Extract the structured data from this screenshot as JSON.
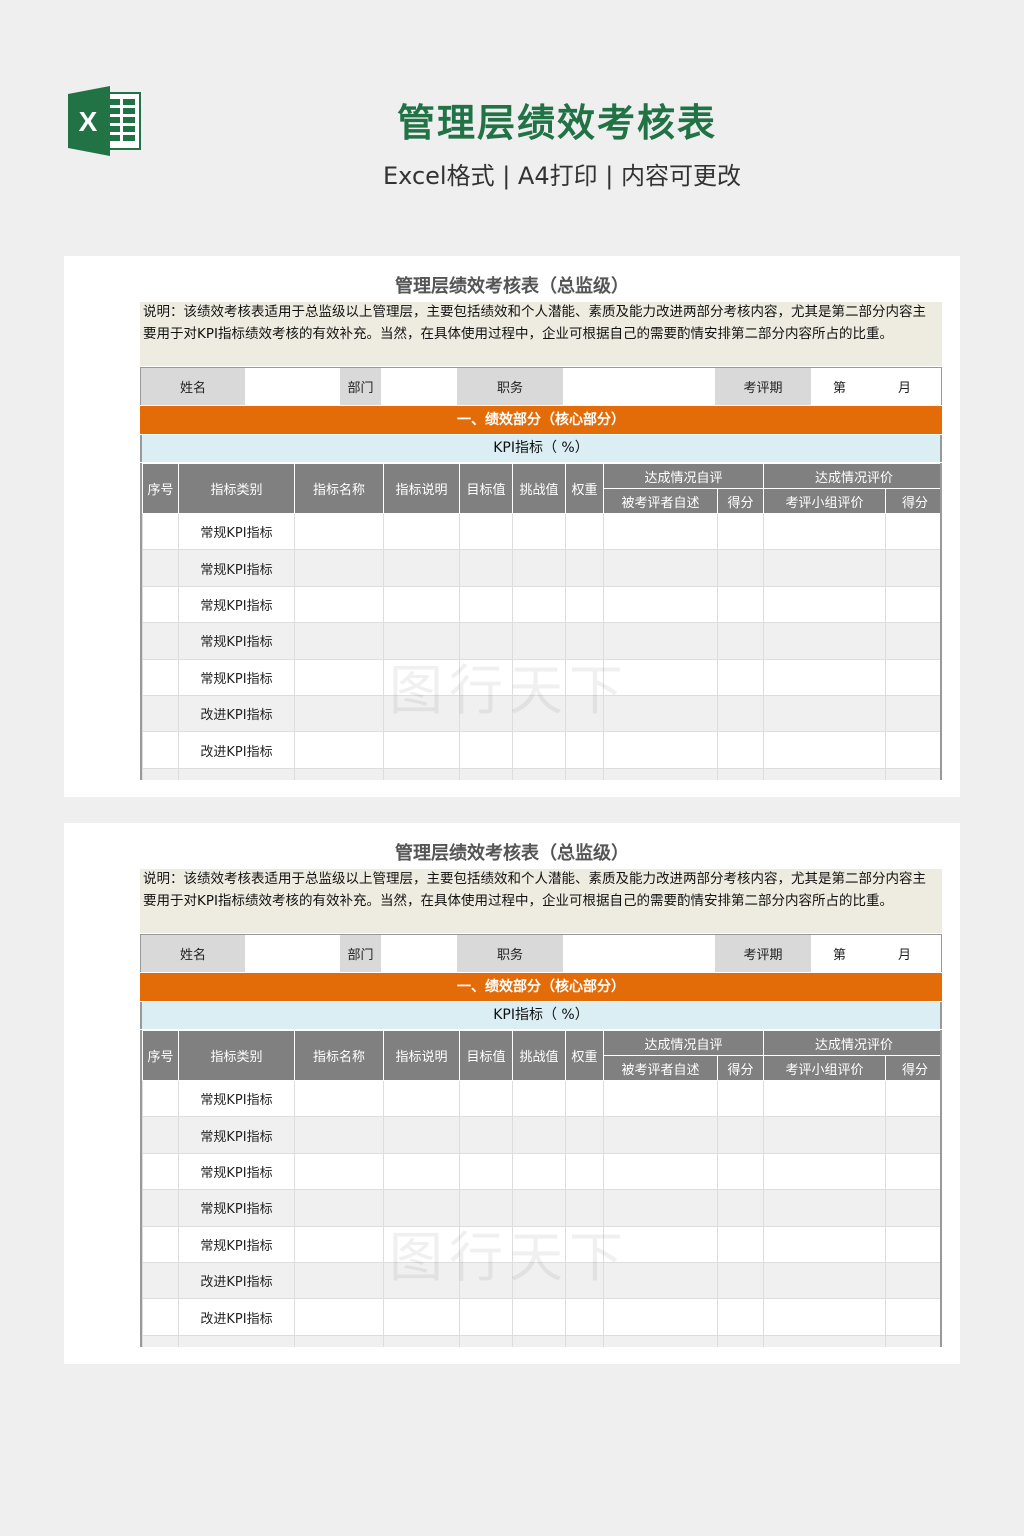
{
  "header": {
    "title": "管理层绩效考核表",
    "subtitle": "Excel格式 | A4打印 | 内容可更改",
    "logo_letter": "X"
  },
  "colors": {
    "brand_green": "#217346",
    "section_orange": "#e36c09",
    "kpi_blue": "#daeef3",
    "header_gray": "#808080",
    "desc_bg": "#eeece1"
  },
  "sheet": {
    "title": "管理层绩效考核表（总监级）",
    "description": "说明：该绩效考核表适用于总监级以上管理层，主要包括绩效和个人潜能、素质及能力改进两部分考核内容，尤其是第二部分内容主要用于对KPI指标绩效考核的有效补充。当然，在具体使用过程中，企业可根据自己的需要酌情安排第二部分内容所占的比重。",
    "info": {
      "name_label": "姓名",
      "dept_label": "部门",
      "position_label": "职务",
      "period_label": "考评期",
      "period_no": "第",
      "period_month": "月"
    },
    "section": "一、绩效部分（核心部分）",
    "kpi_label": "KPI指标（    %）",
    "columns": {
      "no": "序号",
      "category": "指标类别",
      "name": "指标名称",
      "desc": "指标说明",
      "target": "目标值",
      "challenge": "挑战值",
      "weight": "权重",
      "self_eval": "达成情况自评",
      "self_desc": "被考评者自述",
      "self_score": "得分",
      "group_eval": "达成情况评价",
      "group_comment": "考评小组评价",
      "group_score": "得分"
    },
    "rows": [
      "常规KPI指标",
      "常规KPI指标",
      "常规KPI指标",
      "常规KPI指标",
      "常规KPI指标",
      "改进KPI指标",
      "改进KPI指标",
      ""
    ]
  },
  "watermark": "图行天下"
}
